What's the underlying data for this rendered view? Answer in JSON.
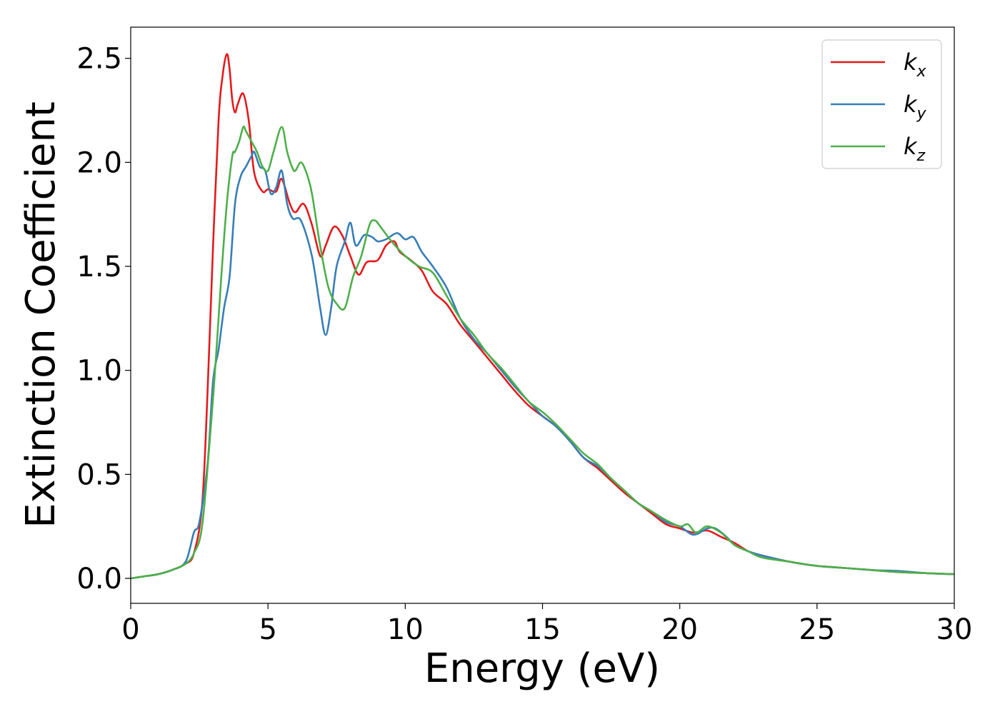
{
  "chart_data": {
    "type": "line",
    "title": "",
    "xlabel": "Energy (eV)",
    "ylabel": "Extinction Coefficient",
    "xlim": [
      0,
      30
    ],
    "ylim": [
      -0.12,
      2.65
    ],
    "xticks": [
      0,
      5,
      10,
      15,
      20,
      25,
      30
    ],
    "xtick_labels": [
      "0",
      "5",
      "10",
      "15",
      "20",
      "25",
      "30"
    ],
    "yticks": [
      0.0,
      0.5,
      1.0,
      1.5,
      2.0,
      2.5
    ],
    "ytick_labels": [
      "0.0",
      "0.5",
      "1.0",
      "1.5",
      "2.0",
      "2.5"
    ],
    "grid": false,
    "legend_position": "top-right",
    "series": [
      {
        "name": "k_x",
        "legend_base": "k",
        "legend_sub": "x",
        "color": "#e41a1c",
        "x": [
          0,
          0.5,
          1,
          1.5,
          2,
          2.3,
          2.6,
          2.8,
          3.0,
          3.2,
          3.35,
          3.5,
          3.6,
          3.7,
          3.8,
          3.9,
          4.1,
          4.3,
          4.5,
          4.8,
          5.0,
          5.3,
          5.5,
          5.8,
          6.0,
          6.3,
          6.6,
          6.9,
          7.1,
          7.4,
          7.7,
          8.0,
          8.3,
          8.6,
          9.0,
          9.3,
          9.6,
          9.8,
          10.2,
          10.6,
          11.0,
          11.5,
          12.0,
          12.5,
          13.0,
          13.5,
          14.0,
          14.5,
          15.0,
          15.5,
          16.0,
          16.5,
          17.0,
          17.5,
          18.0,
          18.5,
          19.0,
          19.5,
          20.0,
          20.5,
          21.0,
          21.5,
          22.0,
          22.5,
          23.0,
          24.0,
          25.0,
          26.0,
          27.0,
          28.0,
          29.0,
          30.0
        ],
        "y": [
          0.0,
          0.01,
          0.02,
          0.04,
          0.07,
          0.12,
          0.35,
          0.9,
          1.6,
          2.2,
          2.42,
          2.52,
          2.45,
          2.3,
          2.24,
          2.28,
          2.33,
          2.2,
          1.95,
          1.86,
          1.87,
          1.86,
          1.92,
          1.8,
          1.76,
          1.8,
          1.7,
          1.55,
          1.6,
          1.69,
          1.65,
          1.55,
          1.46,
          1.52,
          1.53,
          1.6,
          1.62,
          1.57,
          1.53,
          1.48,
          1.38,
          1.32,
          1.22,
          1.14,
          1.06,
          0.98,
          0.9,
          0.83,
          0.78,
          0.73,
          0.66,
          0.58,
          0.53,
          0.47,
          0.41,
          0.36,
          0.31,
          0.26,
          0.24,
          0.22,
          0.23,
          0.2,
          0.17,
          0.13,
          0.11,
          0.08,
          0.06,
          0.05,
          0.04,
          0.03,
          0.025,
          0.02
        ]
      },
      {
        "name": "k_y",
        "legend_base": "k",
        "legend_sub": "y",
        "color": "#377eb8",
        "x": [
          0,
          0.5,
          1,
          1.5,
          2,
          2.3,
          2.5,
          2.8,
          3.0,
          3.2,
          3.4,
          3.6,
          3.8,
          4.0,
          4.2,
          4.4,
          4.5,
          4.7,
          4.9,
          5.1,
          5.3,
          5.5,
          5.7,
          5.9,
          6.2,
          6.6,
          6.9,
          7.1,
          7.3,
          7.5,
          7.8,
          8.0,
          8.2,
          8.5,
          8.8,
          9.0,
          9.3,
          9.7,
          10.0,
          10.3,
          10.6,
          11.0,
          11.5,
          12.0,
          12.5,
          13.0,
          13.5,
          14.0,
          14.5,
          15.0,
          15.5,
          16.0,
          16.5,
          17.0,
          17.5,
          18.0,
          18.5,
          19.0,
          19.5,
          20.0,
          20.5,
          21.0,
          21.3,
          21.7,
          22.0,
          22.5,
          23.0,
          24.0,
          25.0,
          26.0,
          27.0,
          28.0,
          29.0,
          30.0
        ],
        "y": [
          0.0,
          0.01,
          0.02,
          0.04,
          0.08,
          0.22,
          0.27,
          0.55,
          0.95,
          1.1,
          1.3,
          1.45,
          1.8,
          1.93,
          1.98,
          2.03,
          2.05,
          1.98,
          1.96,
          1.85,
          1.88,
          1.96,
          1.8,
          1.73,
          1.72,
          1.55,
          1.3,
          1.17,
          1.3,
          1.5,
          1.62,
          1.71,
          1.6,
          1.65,
          1.64,
          1.62,
          1.63,
          1.66,
          1.63,
          1.64,
          1.57,
          1.5,
          1.4,
          1.25,
          1.15,
          1.08,
          1.0,
          0.92,
          0.85,
          0.78,
          0.73,
          0.66,
          0.58,
          0.54,
          0.48,
          0.42,
          0.36,
          0.32,
          0.27,
          0.25,
          0.21,
          0.24,
          0.24,
          0.2,
          0.16,
          0.13,
          0.11,
          0.08,
          0.06,
          0.05,
          0.04,
          0.035,
          0.025,
          0.02
        ]
      },
      {
        "name": "k_z",
        "legend_base": "k",
        "legend_sub": "z",
        "color": "#4daf4a",
        "x": [
          0,
          0.5,
          1,
          1.5,
          2,
          2.3,
          2.6,
          2.9,
          3.1,
          3.3,
          3.5,
          3.7,
          3.8,
          3.95,
          4.1,
          4.2,
          4.4,
          4.6,
          4.8,
          5.0,
          5.2,
          5.5,
          5.7,
          5.9,
          6.0,
          6.2,
          6.4,
          6.6,
          6.9,
          7.2,
          7.5,
          7.8,
          8.1,
          8.4,
          8.7,
          8.9,
          9.1,
          9.5,
          10.0,
          10.5,
          11.0,
          11.5,
          12.0,
          12.5,
          13.0,
          13.5,
          14.0,
          14.5,
          15.0,
          15.5,
          16.0,
          16.5,
          17.0,
          17.5,
          18.0,
          18.5,
          19.0,
          19.5,
          20.0,
          20.3,
          20.6,
          21.0,
          21.5,
          22.0,
          22.5,
          23.0,
          24.0,
          25.0,
          26.0,
          27.0,
          28.0,
          29.0,
          30.0
        ],
        "y": [
          0.0,
          0.01,
          0.02,
          0.04,
          0.07,
          0.12,
          0.25,
          0.7,
          1.05,
          1.45,
          1.8,
          2.03,
          2.05,
          2.1,
          2.17,
          2.15,
          2.1,
          2.05,
          1.98,
          1.96,
          2.05,
          2.17,
          2.05,
          1.97,
          1.96,
          2.0,
          1.95,
          1.85,
          1.6,
          1.4,
          1.32,
          1.3,
          1.45,
          1.55,
          1.7,
          1.72,
          1.69,
          1.62,
          1.55,
          1.5,
          1.47,
          1.36,
          1.25,
          1.17,
          1.08,
          1.01,
          0.93,
          0.85,
          0.8,
          0.74,
          0.67,
          0.6,
          0.55,
          0.48,
          0.42,
          0.36,
          0.32,
          0.28,
          0.25,
          0.26,
          0.22,
          0.25,
          0.22,
          0.16,
          0.13,
          0.1,
          0.08,
          0.06,
          0.05,
          0.04,
          0.03,
          0.025,
          0.02
        ]
      }
    ]
  }
}
